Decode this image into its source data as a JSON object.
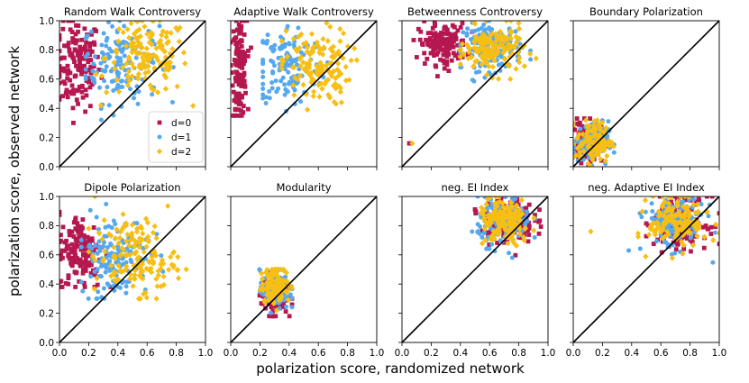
{
  "figure": {
    "xlabel": "polarization score, randomized network",
    "ylabel": "polarization score, observed network"
  },
  "legend": {
    "entries": [
      {
        "label": "d=0",
        "color": "#b5174f",
        "marker": "square"
      },
      {
        "label": "d=1",
        "color": "#56a8ee",
        "marker": "circle"
      },
      {
        "label": "d=2",
        "color": "#f7bf14",
        "marker": "diamond"
      }
    ],
    "placement": "lower-right of first panel"
  },
  "ticks": {
    "x": [
      "0.0",
      "0.2",
      "0.4",
      "0.6",
      "0.8",
      "1.0"
    ],
    "y": [
      "0.0",
      "0.2",
      "0.4",
      "0.6",
      "0.8",
      "1.0"
    ]
  },
  "chart_data": [
    {
      "type": "scatter",
      "title": "Random Walk Controversy",
      "xlim": [
        0,
        1
      ],
      "ylim": [
        0,
        1
      ],
      "diagonal": true,
      "series": [
        {
          "name": "d=0",
          "cx": 0.12,
          "cy": 0.7,
          "sx": 0.08,
          "sy": 0.16,
          "n": 150,
          "xr": [
            0.0,
            0.32
          ],
          "yr": [
            0.3,
            1.0
          ]
        },
        {
          "name": "d=1",
          "cx": 0.42,
          "cy": 0.72,
          "sx": 0.13,
          "sy": 0.14,
          "n": 150,
          "xr": [
            0.18,
            0.78
          ],
          "yr": [
            0.32,
            1.0
          ]
        },
        {
          "name": "d=2",
          "cx": 0.6,
          "cy": 0.75,
          "sx": 0.14,
          "sy": 0.13,
          "n": 150,
          "xr": [
            0.25,
            1.0
          ],
          "yr": [
            0.3,
            1.0
          ]
        }
      ]
    },
    {
      "type": "scatter",
      "title": "Adaptive Walk Controversy",
      "xlim": [
        0,
        1
      ],
      "ylim": [
        0,
        1
      ],
      "diagonal": true,
      "series": [
        {
          "name": "d=0",
          "cx": 0.06,
          "cy": 0.68,
          "sx": 0.025,
          "sy": 0.17,
          "n": 140,
          "xr": [
            0.0,
            0.15
          ],
          "yr": [
            0.35,
            1.0
          ]
        },
        {
          "name": "d=1",
          "cx": 0.4,
          "cy": 0.7,
          "sx": 0.11,
          "sy": 0.14,
          "n": 140,
          "xr": [
            0.22,
            0.68
          ],
          "yr": [
            0.38,
            1.0
          ]
        },
        {
          "name": "d=2",
          "cx": 0.58,
          "cy": 0.68,
          "sx": 0.12,
          "sy": 0.13,
          "n": 140,
          "xr": [
            0.35,
            1.0
          ],
          "yr": [
            0.32,
            1.0
          ]
        }
      ]
    },
    {
      "type": "scatter",
      "title": "Betweenness Controversy",
      "xlim": [
        0,
        1
      ],
      "ylim": [
        0,
        1
      ],
      "diagonal": true,
      "series": [
        {
          "name": "d=0",
          "cx": 0.28,
          "cy": 0.84,
          "sx": 0.08,
          "sy": 0.07,
          "n": 150,
          "xr": [
            0.08,
            0.48
          ],
          "yr": [
            0.62,
            1.0
          ]
        },
        {
          "name": "d=1",
          "cx": 0.62,
          "cy": 0.82,
          "sx": 0.1,
          "sy": 0.08,
          "n": 150,
          "xr": [
            0.4,
            0.88
          ],
          "yr": [
            0.58,
            1.0
          ]
        },
        {
          "name": "d=2",
          "cx": 0.62,
          "cy": 0.8,
          "sx": 0.11,
          "sy": 0.08,
          "n": 150,
          "xr": [
            0.4,
            0.98
          ],
          "yr": [
            0.55,
            1.0
          ]
        }
      ],
      "extra_points": [
        {
          "series": "d=0",
          "x": 0.05,
          "y": 0.16
        },
        {
          "series": "d=2",
          "x": 0.07,
          "y": 0.16
        }
      ]
    },
    {
      "type": "scatter",
      "title": "Boundary Polarization",
      "xlim": [
        0,
        1
      ],
      "ylim": [
        0,
        1
      ],
      "diagonal": true,
      "series": [
        {
          "name": "d=0",
          "cx": 0.1,
          "cy": 0.17,
          "sx": 0.05,
          "sy": 0.07,
          "n": 120,
          "xr": [
            0.0,
            0.24
          ],
          "yr": [
            0.0,
            0.33
          ]
        },
        {
          "name": "d=1",
          "cx": 0.12,
          "cy": 0.17,
          "sx": 0.06,
          "sy": 0.07,
          "n": 120,
          "xr": [
            0.0,
            0.28
          ],
          "yr": [
            0.0,
            0.33
          ]
        },
        {
          "name": "d=2",
          "cx": 0.14,
          "cy": 0.17,
          "sx": 0.06,
          "sy": 0.07,
          "n": 120,
          "xr": [
            0.0,
            0.28
          ],
          "yr": [
            0.0,
            0.33
          ]
        }
      ]
    },
    {
      "type": "scatter",
      "title": "Dipole Polarization",
      "xlim": [
        0,
        1
      ],
      "ylim": [
        0,
        1
      ],
      "diagonal": true,
      "series": [
        {
          "name": "d=0",
          "cx": 0.15,
          "cy": 0.62,
          "sx": 0.08,
          "sy": 0.13,
          "n": 150,
          "xr": [
            0.0,
            0.35
          ],
          "yr": [
            0.38,
            1.0
          ]
        },
        {
          "name": "d=1",
          "cx": 0.38,
          "cy": 0.6,
          "sx": 0.12,
          "sy": 0.14,
          "n": 150,
          "xr": [
            0.15,
            0.72
          ],
          "yr": [
            0.3,
            1.0
          ]
        },
        {
          "name": "d=2",
          "cx": 0.52,
          "cy": 0.58,
          "sx": 0.14,
          "sy": 0.13,
          "n": 150,
          "xr": [
            0.2,
            0.92
          ],
          "yr": [
            0.3,
            1.0
          ]
        }
      ]
    },
    {
      "type": "scatter",
      "title": "Modularity",
      "xlim": [
        0,
        1
      ],
      "ylim": [
        0,
        1
      ],
      "diagonal": true,
      "series": [
        {
          "name": "d=0",
          "cx": 0.3,
          "cy": 0.33,
          "sx": 0.045,
          "sy": 0.07,
          "n": 130,
          "xr": [
            0.18,
            0.42
          ],
          "yr": [
            0.18,
            0.5
          ]
        },
        {
          "name": "d=1",
          "cx": 0.3,
          "cy": 0.36,
          "sx": 0.05,
          "sy": 0.07,
          "n": 130,
          "xr": [
            0.05,
            0.42
          ],
          "yr": [
            0.16,
            0.5
          ]
        },
        {
          "name": "d=2",
          "cx": 0.31,
          "cy": 0.39,
          "sx": 0.05,
          "sy": 0.06,
          "n": 130,
          "xr": [
            0.18,
            0.42
          ],
          "yr": [
            0.22,
            0.5
          ]
        }
      ]
    },
    {
      "type": "scatter",
      "title": "neg. EI Index",
      "xlim": [
        0,
        1
      ],
      "ylim": [
        0,
        1
      ],
      "diagonal": true,
      "series": [
        {
          "name": "d=0",
          "cx": 0.72,
          "cy": 0.84,
          "sx": 0.09,
          "sy": 0.08,
          "n": 150,
          "xr": [
            0.5,
            1.0
          ],
          "yr": [
            0.55,
            1.0
          ]
        },
        {
          "name": "d=1",
          "cx": 0.7,
          "cy": 0.83,
          "sx": 0.09,
          "sy": 0.08,
          "n": 150,
          "xr": [
            0.48,
            1.0
          ],
          "yr": [
            0.55,
            1.0
          ]
        },
        {
          "name": "d=2",
          "cx": 0.7,
          "cy": 0.82,
          "sx": 0.09,
          "sy": 0.08,
          "n": 150,
          "xr": [
            0.48,
            1.0
          ],
          "yr": [
            0.55,
            1.0
          ]
        }
      ]
    },
    {
      "type": "scatter",
      "title": "neg. Adaptive EI Index",
      "xlim": [
        0,
        1
      ],
      "ylim": [
        0,
        1
      ],
      "diagonal": true,
      "series": [
        {
          "name": "d=0",
          "cx": 0.74,
          "cy": 0.83,
          "sx": 0.09,
          "sy": 0.09,
          "n": 150,
          "xr": [
            0.5,
            1.0
          ],
          "yr": [
            0.48,
            1.0
          ]
        },
        {
          "name": "d=1",
          "cx": 0.7,
          "cy": 0.82,
          "sx": 0.1,
          "sy": 0.09,
          "n": 150,
          "xr": [
            0.38,
            1.0
          ],
          "yr": [
            0.5,
            1.0
          ]
        },
        {
          "name": "d=2",
          "cx": 0.72,
          "cy": 0.83,
          "sx": 0.1,
          "sy": 0.09,
          "n": 150,
          "xr": [
            0.1,
            1.0
          ],
          "yr": [
            0.5,
            1.0
          ]
        }
      ],
      "extra_points": [
        {
          "series": "d=2",
          "x": 0.12,
          "y": 0.76
        },
        {
          "series": "d=1",
          "x": 0.38,
          "y": 0.63
        }
      ]
    }
  ]
}
